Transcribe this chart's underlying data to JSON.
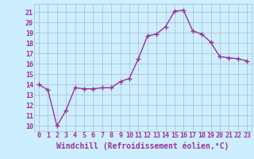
{
  "hours": [
    0,
    1,
    2,
    3,
    4,
    5,
    6,
    7,
    8,
    9,
    10,
    11,
    12,
    13,
    14,
    15,
    16,
    17,
    18,
    19,
    20,
    21,
    22,
    23
  ],
  "values": [
    14.0,
    13.5,
    10.0,
    11.5,
    13.7,
    13.6,
    13.6,
    13.7,
    13.7,
    14.3,
    14.6,
    16.5,
    18.7,
    18.9,
    19.6,
    21.1,
    21.2,
    19.2,
    18.9,
    18.1,
    16.7,
    16.6,
    16.5,
    16.3
  ],
  "line_color": "#993399",
  "marker_color": "#993399",
  "bg_color": "#cceeff",
  "grid_color": "#aabbcc",
  "xlabel": "Windchill (Refroidissement éolien,°C)",
  "xlim": [
    -0.5,
    23.5
  ],
  "ylim": [
    9.5,
    21.8
  ],
  "yticks": [
    10,
    11,
    12,
    13,
    14,
    15,
    16,
    17,
    18,
    19,
    20,
    21
  ],
  "xticks": [
    0,
    1,
    2,
    3,
    4,
    5,
    6,
    7,
    8,
    9,
    10,
    11,
    12,
    13,
    14,
    15,
    16,
    17,
    18,
    19,
    20,
    21,
    22,
    23
  ],
  "tick_label_color": "#993399",
  "xlabel_color": "#993399",
  "xlabel_fontsize": 7.0,
  "tick_fontsize": 6.0,
  "marker_size": 2.0,
  "line_width": 1.0
}
